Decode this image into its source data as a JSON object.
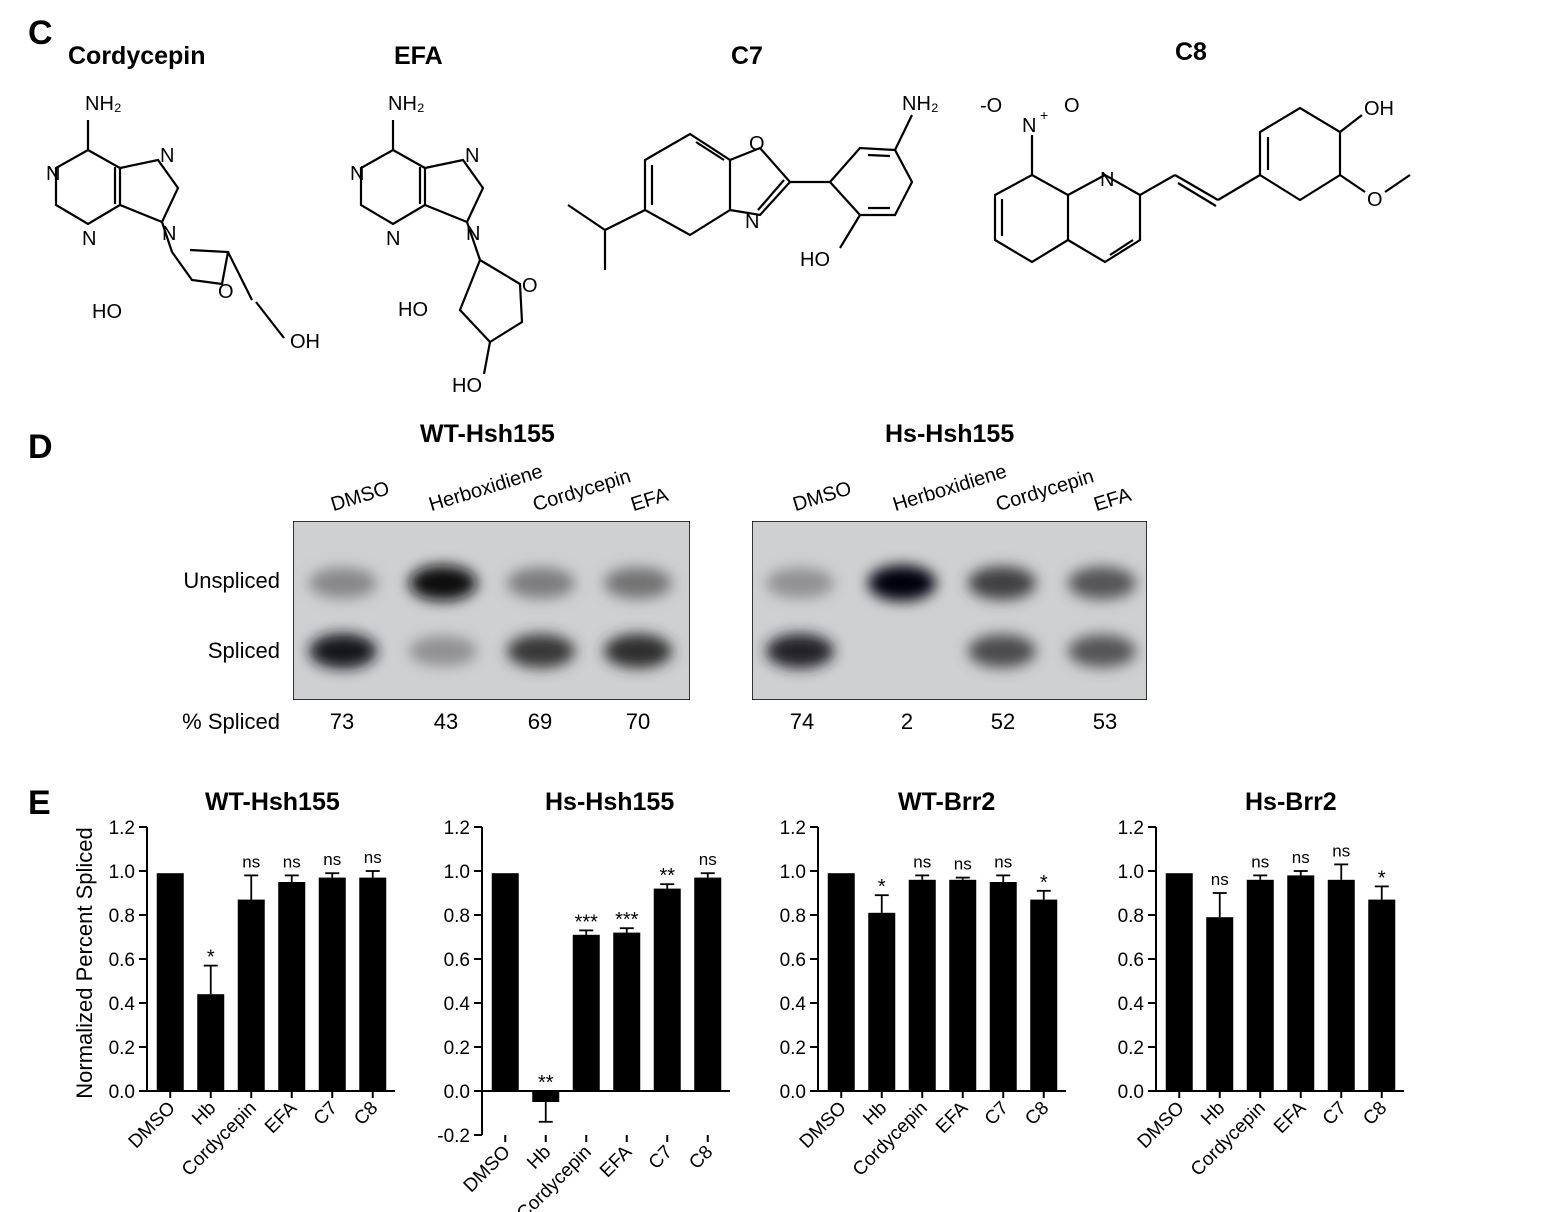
{
  "panels": {
    "c": "C",
    "d": "D",
    "e": "E"
  },
  "structures": [
    {
      "name": "Cordycepin",
      "atoms": [
        "NH₂",
        "N",
        "N",
        "N",
        "N",
        "O",
        "HO",
        "OH"
      ]
    },
    {
      "name": "EFA",
      "atoms": [
        "NH₂",
        "N",
        "N",
        "N",
        "N",
        "O",
        "HO",
        "HO"
      ]
    },
    {
      "name": "C7",
      "atoms": [
        "O",
        "N",
        "NH₂",
        "HO"
      ]
    },
    {
      "name": "C8",
      "atoms": [
        "-O",
        "N",
        "+",
        "O",
        "N",
        "OH",
        "O"
      ]
    }
  ],
  "gels": [
    {
      "title": "WT-Hsh155",
      "lanes": [
        "DMSO",
        "Herboxidiene",
        "Cordycepin",
        "EFA"
      ],
      "percent_spliced": [
        "73",
        "43",
        "69",
        "70"
      ]
    },
    {
      "title": "Hs-Hsh155",
      "lanes": [
        "DMSO",
        "Herboxidiene",
        "Cordycepin",
        "EFA"
      ],
      "percent_spliced": [
        "74",
        "2",
        "52",
        "53"
      ]
    }
  ],
  "gel_row_labels": {
    "unspliced": "Unspliced",
    "spliced": "Spliced",
    "percent": "% Spliced"
  },
  "band_intensity": {
    "WT-Hsh155": {
      "unspliced": [
        0.35,
        0.95,
        0.4,
        0.45
      ],
      "spliced": [
        0.9,
        0.3,
        0.75,
        0.8
      ]
    },
    "Hs-Hsh155": {
      "unspliced": [
        0.3,
        1.0,
        0.7,
        0.6
      ],
      "spliced": [
        0.85,
        0.0,
        0.65,
        0.6
      ]
    }
  },
  "chart_data": [
    {
      "type": "bar",
      "title": "WT-Hsh155",
      "ylabel": "Normalized Percent Spliced",
      "categories": [
        "DMSO",
        "Hb",
        "Cordycepin",
        "EFA",
        "C7",
        "C8"
      ],
      "values": [
        0.99,
        0.44,
        0.87,
        0.95,
        0.97,
        0.97
      ],
      "errors": [
        0,
        0.13,
        0.11,
        0.03,
        0.02,
        0.03
      ],
      "significance": [
        "",
        "*",
        "ns",
        "ns",
        "ns",
        "ns"
      ],
      "ylim": [
        0,
        1.2
      ],
      "yticks": [
        "0.0",
        "0.2",
        "0.4",
        "0.6",
        "0.8",
        "1.0",
        "1.2"
      ]
    },
    {
      "type": "bar",
      "title": "Hs-Hsh155",
      "ylabel": "",
      "categories": [
        "DMSO",
        "Hb",
        "Cordycepin",
        "EFA",
        "C7",
        "C8"
      ],
      "values": [
        0.99,
        -0.05,
        0.71,
        0.72,
        0.92,
        0.97
      ],
      "errors": [
        0,
        0.09,
        0.02,
        0.02,
        0.02,
        0.02
      ],
      "significance": [
        "",
        "**",
        "***",
        "***",
        "**",
        "ns"
      ],
      "ylim": [
        -0.2,
        1.2
      ],
      "yticks": [
        "-0.2",
        "0.0",
        "0.2",
        "0.4",
        "0.6",
        "0.8",
        "1.0",
        "1.2"
      ]
    },
    {
      "type": "bar",
      "title": "WT-Brr2",
      "ylabel": "",
      "categories": [
        "DMSO",
        "Hb",
        "Cordycepin",
        "EFA",
        "C7",
        "C8"
      ],
      "values": [
        0.99,
        0.81,
        0.96,
        0.96,
        0.95,
        0.87
      ],
      "errors": [
        0,
        0.08,
        0.02,
        0.01,
        0.03,
        0.04
      ],
      "significance": [
        "",
        "*",
        "ns",
        "ns",
        "ns",
        "*"
      ],
      "ylim": [
        0,
        1.2
      ],
      "yticks": [
        "0.0",
        "0.2",
        "0.4",
        "0.6",
        "0.8",
        "1.0",
        "1.2"
      ]
    },
    {
      "type": "bar",
      "title": "Hs-Brr2",
      "ylabel": "",
      "categories": [
        "DMSO",
        "Hb",
        "Cordycepin",
        "EFA",
        "C7",
        "C8"
      ],
      "values": [
        0.99,
        0.79,
        0.96,
        0.98,
        0.96,
        0.87
      ],
      "errors": [
        0,
        0.11,
        0.02,
        0.02,
        0.07,
        0.06
      ],
      "significance": [
        "",
        "ns",
        "ns",
        "ns",
        "ns",
        "*"
      ],
      "ylim": [
        0,
        1.2
      ],
      "yticks": [
        "0.0",
        "0.2",
        "0.4",
        "0.6",
        "0.8",
        "1.0",
        "1.2"
      ]
    }
  ]
}
